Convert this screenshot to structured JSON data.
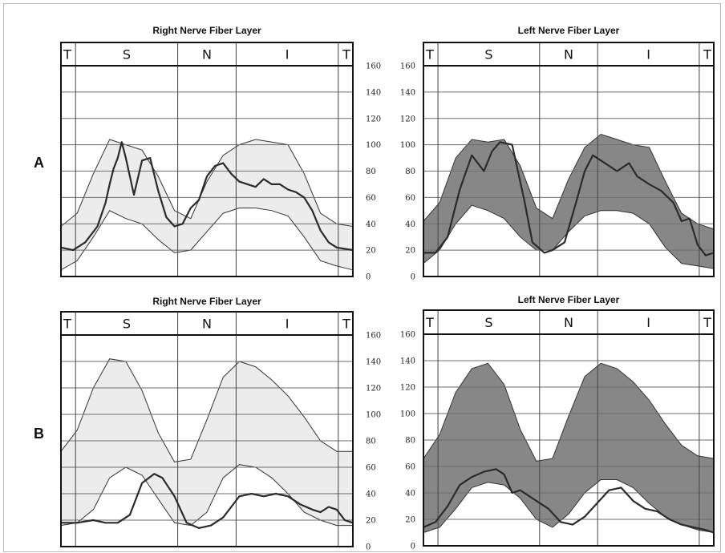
{
  "figure": {
    "row_labels": [
      "A",
      "B"
    ]
  },
  "colors": {
    "normal_band_right": "#ececec",
    "normal_band_left": "#878787",
    "curve": "#2b2b2b",
    "grid": "#6e6e6e"
  },
  "chart_data": [
    {
      "type": "area",
      "title": "Right Nerve Fiber Layer",
      "row": "A",
      "sectors": [
        "T",
        "S",
        "N",
        "I",
        "T"
      ],
      "y_ticks": [
        0,
        20,
        40,
        60,
        80,
        100,
        120,
        140,
        160
      ],
      "ylim": [
        0,
        160
      ],
      "xlim": [
        0,
        360
      ],
      "y_axis_side": "right",
      "normal_band": {
        "x": [
          0,
          20,
          40,
          60,
          80,
          100,
          120,
          140,
          160,
          180,
          200,
          220,
          240,
          260,
          280,
          300,
          320,
          340,
          360
        ],
        "upper": [
          38,
          48,
          78,
          104,
          100,
          96,
          76,
          50,
          44,
          72,
          92,
          100,
          104,
          102,
          100,
          78,
          48,
          40,
          38
        ],
        "lower": [
          5,
          12,
          30,
          50,
          44,
          40,
          28,
          18,
          20,
          34,
          48,
          52,
          52,
          50,
          46,
          30,
          12,
          8,
          5
        ]
      },
      "measurement": {
        "x": [
          0,
          15,
          30,
          45,
          55,
          60,
          65,
          70,
          75,
          80,
          90,
          100,
          110,
          120,
          130,
          140,
          150,
          160,
          170,
          180,
          190,
          200,
          210,
          220,
          230,
          240,
          250,
          260,
          270,
          280,
          290,
          300,
          310,
          320,
          330,
          340,
          350,
          360
        ],
        "y": [
          22,
          20,
          26,
          38,
          56,
          70,
          82,
          90,
          102,
          90,
          62,
          88,
          90,
          65,
          45,
          38,
          40,
          52,
          58,
          76,
          84,
          86,
          78,
          72,
          70,
          68,
          74,
          70,
          70,
          66,
          64,
          60,
          50,
          35,
          26,
          22,
          21,
          20
        ]
      }
    },
    {
      "type": "area",
      "title": "Left Nerve Fiber Layer",
      "row": "A",
      "sectors": [
        "T",
        "S",
        "N",
        "I",
        "T"
      ],
      "y_ticks": [
        0,
        20,
        40,
        60,
        80,
        100,
        120,
        140,
        160
      ],
      "ylim": [
        0,
        160
      ],
      "xlim": [
        0,
        360
      ],
      "y_axis_side": "left",
      "normal_band": {
        "x": [
          0,
          20,
          40,
          60,
          80,
          100,
          120,
          140,
          160,
          180,
          200,
          220,
          240,
          260,
          280,
          300,
          320,
          340,
          360
        ],
        "upper": [
          42,
          56,
          90,
          104,
          102,
          104,
          84,
          52,
          44,
          74,
          98,
          108,
          104,
          100,
          98,
          72,
          48,
          40,
          36
        ],
        "lower": [
          10,
          20,
          40,
          54,
          50,
          44,
          30,
          20,
          20,
          34,
          46,
          50,
          50,
          48,
          40,
          22,
          10,
          8,
          6
        ]
      },
      "measurement": {
        "x": [
          0,
          15,
          30,
          45,
          60,
          75,
          85,
          95,
          110,
          125,
          135,
          150,
          160,
          175,
          190,
          200,
          210,
          225,
          240,
          255,
          265,
          280,
          295,
          310,
          320,
          330,
          340,
          350,
          360
        ],
        "y": [
          18,
          18,
          30,
          66,
          92,
          80,
          95,
          102,
          100,
          58,
          26,
          18,
          20,
          26,
          58,
          80,
          92,
          86,
          80,
          86,
          76,
          70,
          65,
          56,
          42,
          44,
          24,
          16,
          18
        ]
      }
    },
    {
      "type": "area",
      "title": "Right Nerve Fiber Layer",
      "row": "B",
      "sectors": [
        "T",
        "S",
        "N",
        "I",
        "T"
      ],
      "y_ticks": [
        0,
        20,
        40,
        60,
        80,
        100,
        120,
        140,
        160
      ],
      "ylim": [
        0,
        160
      ],
      "xlim": [
        0,
        360
      ],
      "y_axis_side": "right",
      "normal_band": {
        "x": [
          0,
          20,
          40,
          60,
          80,
          100,
          120,
          140,
          160,
          180,
          200,
          220,
          240,
          260,
          280,
          300,
          320,
          340,
          360
        ],
        "upper": [
          72,
          88,
          120,
          142,
          140,
          118,
          86,
          64,
          66,
          96,
          128,
          140,
          136,
          126,
          114,
          98,
          80,
          72,
          72
        ],
        "lower": [
          16,
          18,
          28,
          52,
          60,
          54,
          36,
          18,
          16,
          26,
          52,
          62,
          60,
          52,
          40,
          26,
          20,
          16,
          16
        ]
      },
      "measurement": {
        "x": [
          0,
          20,
          40,
          55,
          70,
          85,
          100,
          115,
          125,
          140,
          155,
          170,
          185,
          200,
          210,
          220,
          235,
          250,
          265,
          280,
          295,
          310,
          320,
          330,
          340,
          350,
          360
        ],
        "y": [
          18,
          18,
          20,
          18,
          18,
          24,
          48,
          55,
          52,
          38,
          18,
          14,
          16,
          22,
          30,
          38,
          40,
          38,
          40,
          38,
          32,
          28,
          26,
          30,
          28,
          20,
          18
        ]
      }
    },
    {
      "type": "area",
      "title": "Left Nerve Fiber Layer",
      "row": "B",
      "sectors": [
        "T",
        "S",
        "N",
        "I",
        "T"
      ],
      "y_ticks": [
        0,
        20,
        40,
        60,
        80,
        100,
        120,
        140,
        160
      ],
      "ylim": [
        0,
        160
      ],
      "xlim": [
        0,
        360
      ],
      "y_axis_side": "left",
      "normal_band": {
        "x": [
          0,
          20,
          40,
          60,
          80,
          100,
          120,
          140,
          160,
          180,
          200,
          220,
          240,
          260,
          280,
          300,
          320,
          340,
          360
        ],
        "upper": [
          66,
          84,
          116,
          134,
          138,
          122,
          88,
          64,
          66,
          98,
          128,
          138,
          134,
          124,
          110,
          92,
          76,
          68,
          66
        ],
        "lower": [
          10,
          14,
          28,
          44,
          48,
          46,
          36,
          20,
          14,
          24,
          40,
          50,
          50,
          44,
          32,
          22,
          16,
          12,
          10
        ]
      },
      "measurement": {
        "x": [
          0,
          15,
          30,
          45,
          60,
          75,
          90,
          100,
          110,
          120,
          130,
          140,
          155,
          170,
          185,
          200,
          215,
          230,
          245,
          260,
          275,
          290,
          305,
          320,
          335,
          350,
          360
        ],
        "y": [
          14,
          18,
          30,
          46,
          52,
          56,
          58,
          54,
          40,
          42,
          38,
          34,
          28,
          18,
          16,
          22,
          32,
          42,
          44,
          34,
          28,
          26,
          20,
          16,
          14,
          12,
          10
        ]
      }
    }
  ]
}
